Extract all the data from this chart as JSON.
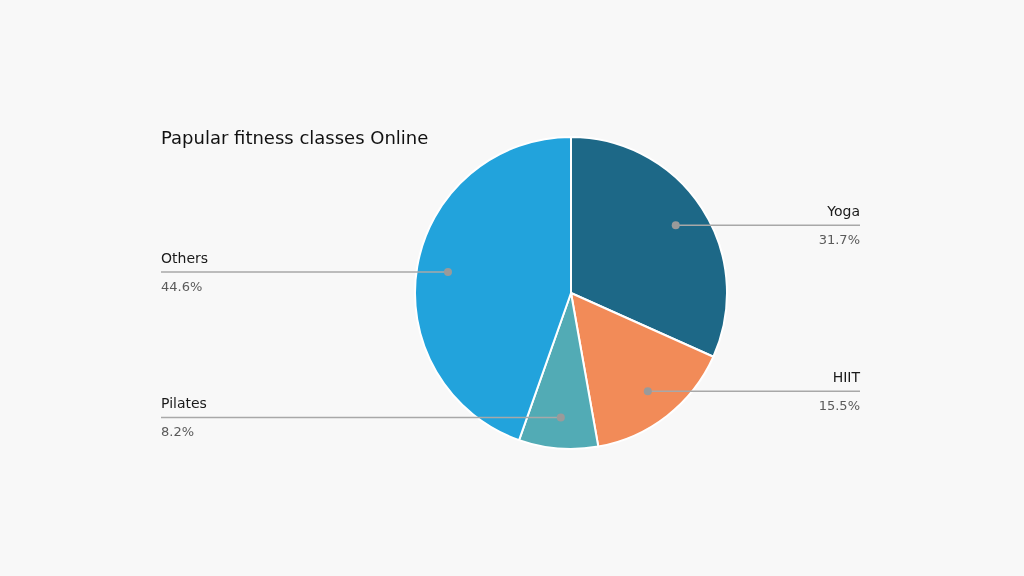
{
  "chart_data": {
    "type": "pie",
    "title": "Papular fitness classes Online",
    "categories": [
      "Yoga",
      "HIIT",
      "Pilates",
      "Others"
    ],
    "values": [
      31.7,
      15.5,
      8.2,
      44.6
    ],
    "value_labels": [
      "31.7%",
      "15.5%",
      "8.2%",
      "44.6%"
    ],
    "colors": [
      "#1d6887",
      "#f28b58",
      "#52abb5",
      "#22a3dc"
    ]
  }
}
